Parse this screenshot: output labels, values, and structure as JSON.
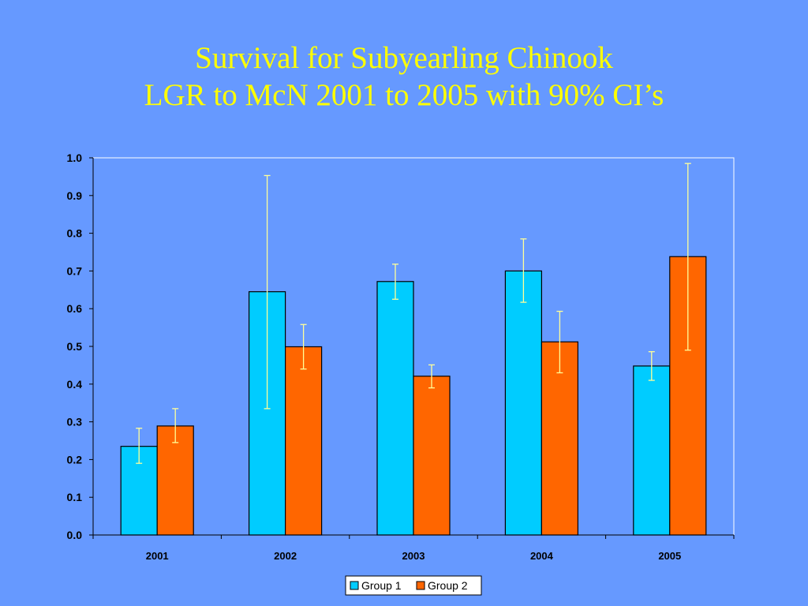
{
  "title_line1": "Survival for Subyearling Chinook",
  "title_line2": "LGR to McN 2001 to 2005 with 90% CI’s",
  "colors": {
    "background": "#6699ff",
    "title": "#ffff00",
    "group1": "#00ccff",
    "group2": "#ff6600",
    "error_bar": "#ffff99",
    "plot_border": "#ffffff"
  },
  "chart_data": {
    "type": "bar",
    "categories": [
      "2001",
      "2002",
      "2003",
      "2004",
      "2005"
    ],
    "series": [
      {
        "name": "Group 1",
        "values": [
          0.235,
          0.645,
          0.672,
          0.7,
          0.448
        ],
        "ci_low": [
          0.19,
          0.335,
          0.625,
          0.617,
          0.41
        ],
        "ci_high": [
          0.283,
          0.953,
          0.718,
          0.785,
          0.486
        ]
      },
      {
        "name": "Group 2",
        "values": [
          0.289,
          0.499,
          0.421,
          0.512,
          0.738
        ],
        "ci_low": [
          0.245,
          0.44,
          0.39,
          0.43,
          0.49
        ],
        "ci_high": [
          0.335,
          0.558,
          0.451,
          0.593,
          0.985
        ]
      }
    ],
    "yticks": [
      "0.0",
      "0.1",
      "0.2",
      "0.3",
      "0.4",
      "0.5",
      "0.6",
      "0.7",
      "0.8",
      "0.9",
      "1.0"
    ],
    "ylim": [
      0,
      1
    ],
    "grid": false,
    "legend_position": "bottom-center"
  }
}
